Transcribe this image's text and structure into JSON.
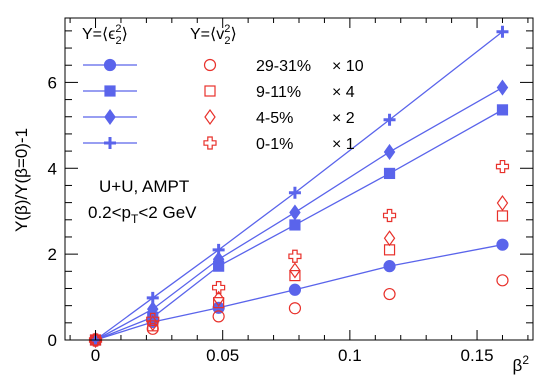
{
  "chart_data": {
    "type": "scatter",
    "xlabel_base": "β",
    "xlabel_sup": "2",
    "ylabel": "Y(β)/Y(β=0)-1",
    "xlim": [
      -0.012,
      0.172
    ],
    "ylim": [
      0,
      7.5
    ],
    "xticks": [
      0,
      0.05,
      0.1,
      0.15
    ],
    "xtick_labels": [
      "0",
      "0.05",
      "0.1",
      "0.15"
    ],
    "yticks": [
      0,
      2,
      4,
      6
    ],
    "ytick_labels": [
      "0",
      "2",
      "4",
      "6"
    ],
    "x": [
      0,
      0.0225,
      0.0484,
      0.0784,
      0.1156,
      0.16
    ],
    "legend": {
      "col1_header_base": "Y=⟨ϵ",
      "col1_header_sup": "2",
      "col1_header_sub": "2",
      "col1_header_end": "⟩",
      "col2_header_base": "Y=⟨v",
      "col2_header_sup": "2",
      "col2_header_sub": "2",
      "col2_header_end": "⟩",
      "entries": [
        {
          "centrality": "29-31%",
          "scale": "× 10"
        },
        {
          "centrality": "9-11%",
          "scale": "× 4"
        },
        {
          "centrality": "4-5%",
          "scale": "× 2"
        },
        {
          "centrality": "0-1%",
          "scale": "× 1"
        }
      ]
    },
    "annotation_line1": "U+U, AMPT",
    "annotation_line2_base": "0.2<p",
    "annotation_line2_sub": "T",
    "annotation_line2_end": "<2 GeV",
    "series": [
      {
        "quantity": "eps2",
        "centrality": "29-31%",
        "marker": "circle",
        "filled": true,
        "line": true,
        "color": "#5a64eb",
        "y": [
          0,
          0.42,
          0.75,
          1.17,
          1.72,
          2.22
        ]
      },
      {
        "quantity": "eps2",
        "centrality": "9-11%",
        "marker": "square",
        "filled": true,
        "line": true,
        "color": "#5a64eb",
        "y": [
          0,
          0.53,
          1.72,
          2.68,
          3.88,
          5.36
        ]
      },
      {
        "quantity": "eps2",
        "centrality": "4-5%",
        "marker": "diamond",
        "filled": true,
        "line": true,
        "color": "#5a64eb",
        "y": [
          0,
          0.72,
          1.88,
          2.97,
          4.38,
          5.88
        ]
      },
      {
        "quantity": "eps2",
        "centrality": "0-1%",
        "marker": "cross",
        "filled": true,
        "line": true,
        "color": "#5a64eb",
        "y": [
          0,
          0.98,
          2.1,
          3.43,
          5.13,
          7.18
        ]
      },
      {
        "quantity": "v2sq",
        "centrality": "29-31%",
        "marker": "circle",
        "filled": false,
        "line": false,
        "color": "#e8312b",
        "y": [
          0,
          0.26,
          0.55,
          0.74,
          1.07,
          1.39
        ]
      },
      {
        "quantity": "v2sq",
        "centrality": "9-11%",
        "marker": "square",
        "filled": false,
        "line": false,
        "color": "#e8312b",
        "y": [
          0,
          0.33,
          0.87,
          1.5,
          2.1,
          2.89
        ]
      },
      {
        "quantity": "v2sq",
        "centrality": "4-5%",
        "marker": "diamond",
        "filled": false,
        "line": false,
        "color": "#e8312b",
        "y": [
          0,
          0.39,
          0.96,
          1.62,
          2.37,
          3.19
        ]
      },
      {
        "quantity": "v2sq",
        "centrality": "0-1%",
        "marker": "cross",
        "filled": false,
        "line": false,
        "color": "#e8312b",
        "y": [
          0,
          0.48,
          1.22,
          1.95,
          2.9,
          4.04
        ]
      }
    ]
  }
}
